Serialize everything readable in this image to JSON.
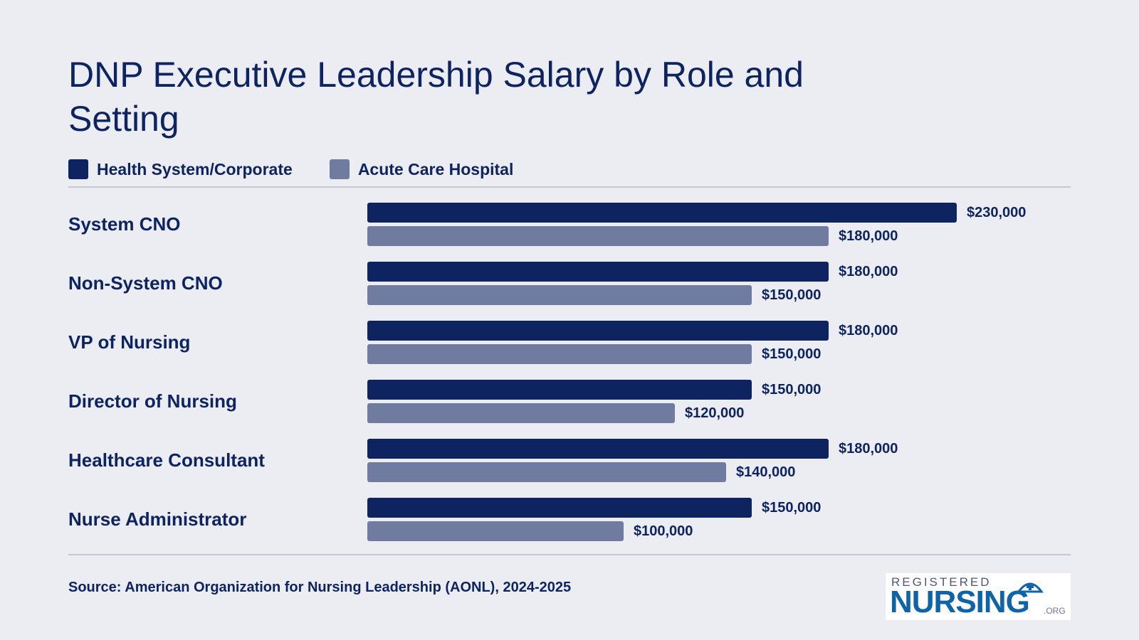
{
  "title": "DNP Executive Leadership Salary by Role and Setting",
  "legend": [
    {
      "label": "Health System/Corporate",
      "color": "#0d2461"
    },
    {
      "label": "Acute Care Hospital",
      "color": "#6f7ca0"
    }
  ],
  "source": "Source: American Organization for Nursing Leadership (AONL), 2024-2025",
  "logo": {
    "top": "REGISTERED",
    "main": "NURSING",
    "suffix": ".ORG"
  },
  "chart_data": {
    "type": "bar",
    "orientation": "horizontal",
    "title": "DNP Executive Leadership Salary by Role and Setting",
    "categories": [
      "System CNO",
      "Non-System CNO",
      "VP of Nursing",
      "Director of Nursing",
      "Healthcare Consultant",
      "Nurse Administrator"
    ],
    "series": [
      {
        "name": "Health System/Corporate",
        "color": "#0d2461",
        "values": [
          230000,
          180000,
          180000,
          150000,
          180000,
          150000
        ],
        "labels": [
          "$230,000",
          "$180,000",
          "$180,000",
          "$150,000",
          "$180,000",
          "$150,000"
        ]
      },
      {
        "name": "Acute Care Hospital",
        "color": "#6f7ca0",
        "values": [
          180000,
          150000,
          150000,
          120000,
          140000,
          100000
        ],
        "labels": [
          "$180,000",
          "$150,000",
          "$150,000",
          "$120,000",
          "$140,000",
          "$100,000"
        ]
      }
    ],
    "xlim": [
      0,
      230000
    ],
    "legend_position": "top-left",
    "grid": false
  }
}
